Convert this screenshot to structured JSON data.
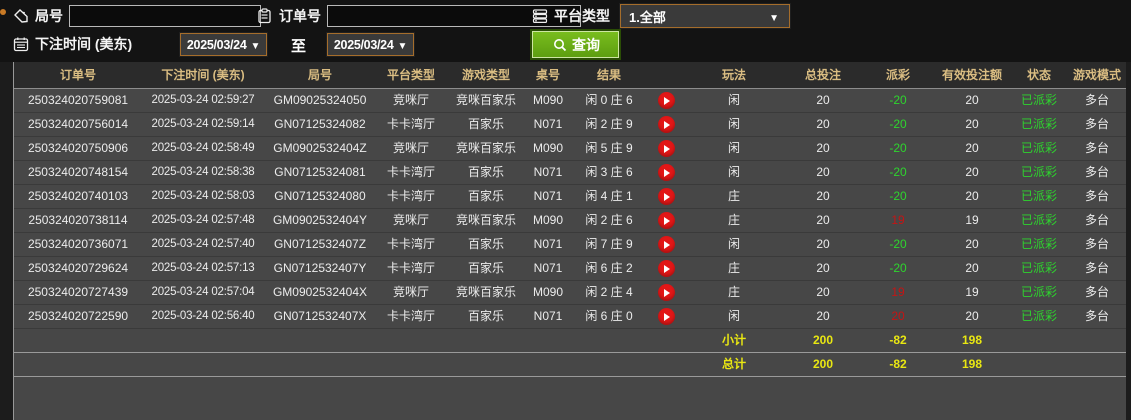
{
  "filters": {
    "round_label": "局号",
    "round_value": "",
    "order_label": "订单号",
    "order_value": "",
    "platform_label": "平台类型",
    "platform_value": "1.全部",
    "bet_time_label": "下注时间 (美东)",
    "date_from": "2025/03/24",
    "to_label": "至",
    "date_to": "2025/03/24",
    "search_label": "查询"
  },
  "table": {
    "headers": [
      "订单号",
      "下注时间 (美东)",
      "局号",
      "平台类型",
      "游戏类型",
      "桌号",
      "结果",
      "",
      "玩法",
      "总投注",
      "派彩",
      "有效投注额",
      "状态",
      "游戏模式"
    ],
    "rows": [
      {
        "order": "250324020759081",
        "time": "2025-03-24 02:59:27",
        "round": "GM09025324050",
        "platform": "竞咪厅",
        "game_type": "竞咪百家乐",
        "table_no": "M090",
        "result": "闲 0 庄 6",
        "play": "闲",
        "total_bet": "20",
        "payout": "-20",
        "valid_bet": "20",
        "status": "已派彩",
        "mode": "多台"
      },
      {
        "order": "250324020756014",
        "time": "2025-03-24 02:59:14",
        "round": "GN07125324082",
        "platform": "卡卡湾厅",
        "game_type": "百家乐",
        "table_no": "N071",
        "result": "闲 2 庄 9",
        "play": "闲",
        "total_bet": "20",
        "payout": "-20",
        "valid_bet": "20",
        "status": "已派彩",
        "mode": "多台"
      },
      {
        "order": "250324020750906",
        "time": "2025-03-24 02:58:49",
        "round": "GM0902532404Z",
        "platform": "竞咪厅",
        "game_type": "竞咪百家乐",
        "table_no": "M090",
        "result": "闲 5 庄 9",
        "play": "闲",
        "total_bet": "20",
        "payout": "-20",
        "valid_bet": "20",
        "status": "已派彩",
        "mode": "多台"
      },
      {
        "order": "250324020748154",
        "time": "2025-03-24 02:58:38",
        "round": "GN07125324081",
        "platform": "卡卡湾厅",
        "game_type": "百家乐",
        "table_no": "N071",
        "result": "闲 3 庄 6",
        "play": "闲",
        "total_bet": "20",
        "payout": "-20",
        "valid_bet": "20",
        "status": "已派彩",
        "mode": "多台"
      },
      {
        "order": "250324020740103",
        "time": "2025-03-24 02:58:03",
        "round": "GN07125324080",
        "platform": "卡卡湾厅",
        "game_type": "百家乐",
        "table_no": "N071",
        "result": "闲 4 庄 1",
        "play": "庄",
        "total_bet": "20",
        "payout": "-20",
        "valid_bet": "20",
        "status": "已派彩",
        "mode": "多台"
      },
      {
        "order": "250324020738114",
        "time": "2025-03-24 02:57:48",
        "round": "GM0902532404Y",
        "platform": "竞咪厅",
        "game_type": "竞咪百家乐",
        "table_no": "M090",
        "result": "闲 2 庄 6",
        "play": "庄",
        "total_bet": "20",
        "payout": "19",
        "valid_bet": "19",
        "status": "已派彩",
        "mode": "多台"
      },
      {
        "order": "250324020736071",
        "time": "2025-03-24 02:57:40",
        "round": "GN0712532407Z",
        "platform": "卡卡湾厅",
        "game_type": "百家乐",
        "table_no": "N071",
        "result": "闲 7 庄 9",
        "play": "闲",
        "total_bet": "20",
        "payout": "-20",
        "valid_bet": "20",
        "status": "已派彩",
        "mode": "多台"
      },
      {
        "order": "250324020729624",
        "time": "2025-03-24 02:57:13",
        "round": "GN0712532407Y",
        "platform": "卡卡湾厅",
        "game_type": "百家乐",
        "table_no": "N071",
        "result": "闲 6 庄 2",
        "play": "庄",
        "total_bet": "20",
        "payout": "-20",
        "valid_bet": "20",
        "status": "已派彩",
        "mode": "多台"
      },
      {
        "order": "250324020727439",
        "time": "2025-03-24 02:57:04",
        "round": "GM0902532404X",
        "platform": "竞咪厅",
        "game_type": "竞咪百家乐",
        "table_no": "M090",
        "result": "闲 2 庄 4",
        "play": "庄",
        "total_bet": "20",
        "payout": "19",
        "valid_bet": "19",
        "status": "已派彩",
        "mode": "多台"
      },
      {
        "order": "250324020722590",
        "time": "2025-03-24 02:56:40",
        "round": "GN0712532407X",
        "platform": "卡卡湾厅",
        "game_type": "百家乐",
        "table_no": "N071",
        "result": "闲 6 庄 0",
        "play": "闲",
        "total_bet": "20",
        "payout": "20",
        "valid_bet": "20",
        "status": "已派彩",
        "mode": "多台"
      }
    ],
    "subtotal": {
      "label": "小计",
      "total_bet": "200",
      "payout": "-82",
      "valid_bet": "198"
    },
    "grand_total": {
      "label": "总计",
      "total_bet": "200",
      "payout": "-82",
      "valid_bet": "198"
    }
  },
  "colors": {
    "header_text": "#dabd82",
    "win_payout": "#c51414",
    "loss_payout": "#2ed42e",
    "status_paid": "#2ed42e",
    "totals": "#e9e712",
    "search_button": "#6aac17",
    "date_border": "#a56d2b",
    "play_button": "#e21717"
  }
}
